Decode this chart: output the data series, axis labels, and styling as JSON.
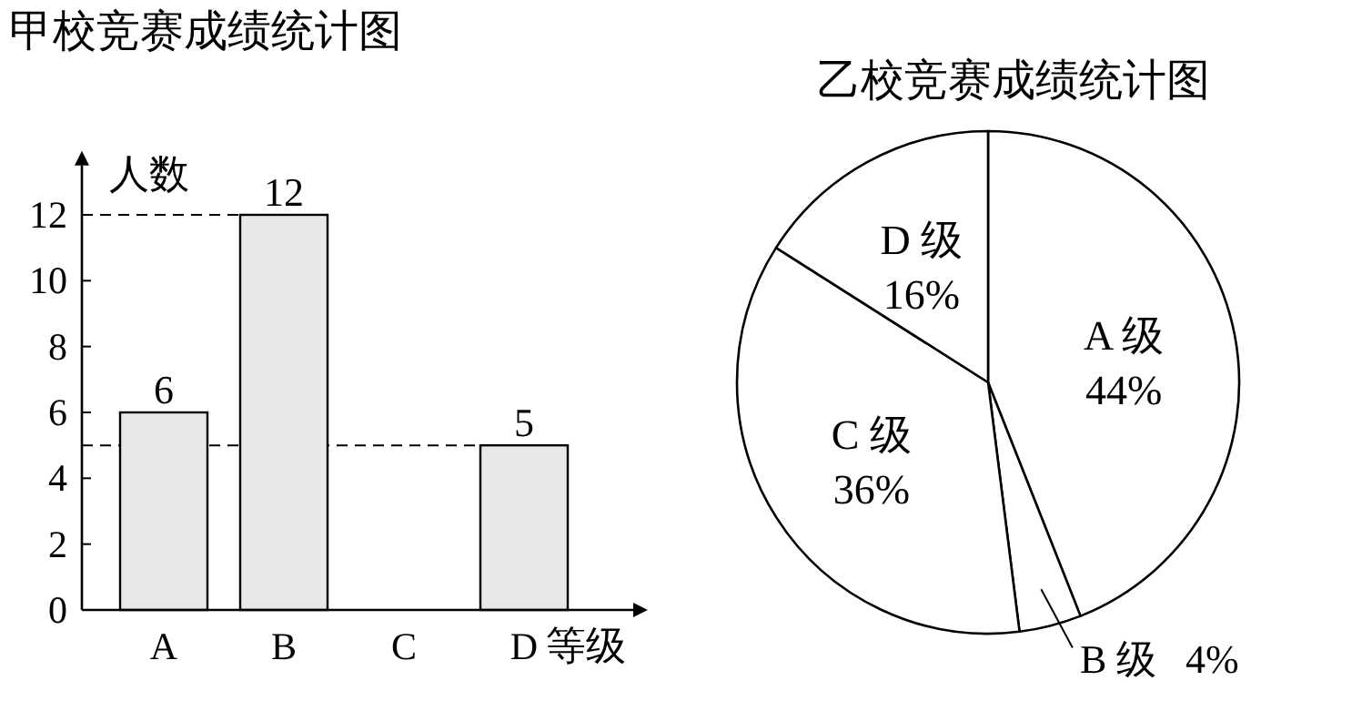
{
  "chart_data": [
    {
      "type": "bar",
      "title": "甲校竞赛成绩统计图",
      "xlabel": "等级",
      "ylabel": "人数",
      "categories": [
        "A",
        "B",
        "C",
        "D"
      ],
      "values": [
        6,
        12,
        null,
        5
      ],
      "color": "#e8e8e8",
      "ylim": [
        0,
        13.5
      ],
      "yticks": [
        0,
        2,
        4,
        6,
        8,
        10,
        12
      ],
      "data_labels": true,
      "ref_lines": [
        {
          "axis": "y",
          "value": 12,
          "line_style": "dashed"
        },
        {
          "axis": "y",
          "value": 5,
          "line_style": "dashed"
        }
      ]
    },
    {
      "type": "pie",
      "title": "乙校竞赛成绩统计图",
      "categories": [
        "A 级",
        "B 级",
        "C 级",
        "D 级"
      ],
      "values": [
        44,
        4,
        36,
        16
      ],
      "colors": [
        "#ffffff",
        "#ffffff",
        "#ffffff",
        "#ffffff"
      ],
      "value_labels": [
        "44%",
        "4%",
        "36%",
        "16%"
      ]
    }
  ]
}
